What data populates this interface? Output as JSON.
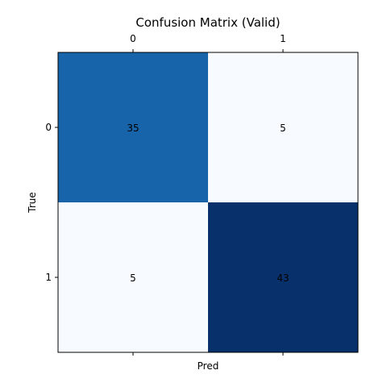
{
  "chart_data": {
    "type": "heatmap",
    "title": "Confusion Matrix (Valid)",
    "xlabel": "Pred",
    "ylabel": "True",
    "x_tick_labels": [
      "0",
      "1"
    ],
    "y_tick_labels": [
      "0",
      "1"
    ],
    "matrix": [
      [
        35,
        5
      ],
      [
        5,
        43
      ]
    ],
    "colormap": "Blues",
    "cell_colors": [
      [
        "#1764ab",
        "#f7fbff"
      ],
      [
        "#f7fbff",
        "#08306b"
      ]
    ],
    "text_color": "#000000",
    "x_ticks_position": "top",
    "grid": false
  }
}
